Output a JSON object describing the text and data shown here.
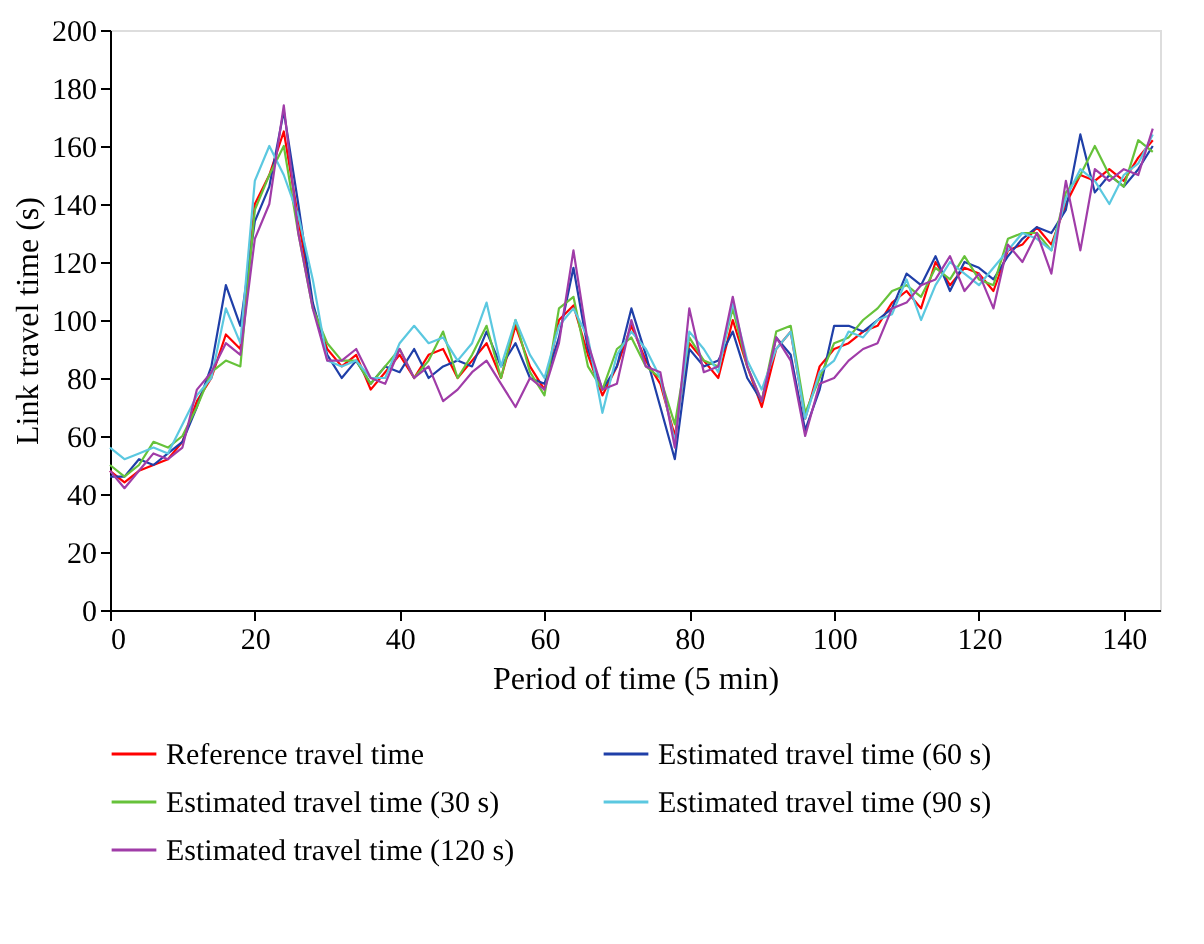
{
  "chart_data": {
    "type": "line",
    "xlabel": "Period of time (5 min)",
    "ylabel": "Link travel time (s)",
    "x": [
      0,
      2,
      4,
      6,
      8,
      10,
      12,
      14,
      16,
      18,
      20,
      22,
      24,
      26,
      28,
      30,
      32,
      34,
      36,
      38,
      40,
      42,
      44,
      46,
      48,
      50,
      52,
      54,
      56,
      58,
      60,
      62,
      64,
      66,
      68,
      70,
      72,
      74,
      76,
      78,
      80,
      82,
      84,
      86,
      88,
      90,
      92,
      94,
      96,
      98,
      100,
      102,
      104,
      106,
      108,
      110,
      112,
      114,
      116,
      118,
      120,
      122,
      124,
      126,
      128,
      130,
      132,
      134,
      136,
      138,
      140,
      142,
      144
    ],
    "xlim": [
      0,
      145
    ],
    "xticks": [
      0,
      20,
      40,
      60,
      80,
      100,
      120,
      140
    ],
    "ylim": [
      0,
      200
    ],
    "yticks": [
      0,
      20,
      40,
      60,
      80,
      100,
      120,
      140,
      160,
      180,
      200
    ],
    "grid": false,
    "legend": "bottom",
    "line_style": "solid",
    "marker": "none",
    "series": [
      {
        "name": "Reference travel time",
        "color": "#ff0000",
        "values": [
          48,
          44,
          48,
          50,
          52,
          58,
          72,
          80,
          95,
          90,
          140,
          150,
          165,
          135,
          105,
          90,
          84,
          88,
          76,
          82,
          88,
          80,
          88,
          90,
          80,
          86,
          92,
          80,
          98,
          84,
          76,
          100,
          105,
          88,
          74,
          84,
          98,
          86,
          78,
          60,
          92,
          86,
          80,
          100,
          84,
          70,
          90,
          96,
          66,
          84,
          90,
          92,
          96,
          98,
          106,
          110,
          104,
          120,
          112,
          118,
          116,
          110,
          124,
          126,
          132,
          126,
          140,
          150,
          148,
          152,
          148,
          156,
          162
        ]
      },
      {
        "name": "Estimated travel time (60 s)",
        "color": "#1f3fa8",
        "values": [
          46,
          46,
          52,
          50,
          54,
          58,
          70,
          84,
          112,
          98,
          134,
          146,
          172,
          140,
          106,
          88,
          80,
          86,
          78,
          84,
          82,
          90,
          80,
          84,
          86,
          84,
          96,
          84,
          92,
          80,
          78,
          94,
          118,
          90,
          76,
          84,
          104,
          88,
          70,
          52,
          90,
          84,
          86,
          96,
          80,
          72,
          94,
          88,
          62,
          76,
          98,
          98,
          96,
          100,
          104,
          116,
          112,
          122,
          110,
          120,
          118,
          114,
          122,
          128,
          132,
          130,
          138,
          164,
          144,
          150,
          146,
          152,
          160
        ]
      },
      {
        "name": "Estimated travel time (30 s)",
        "color": "#66c23a",
        "values": [
          50,
          46,
          50,
          58,
          56,
          60,
          70,
          82,
          86,
          84,
          138,
          150,
          160,
          130,
          104,
          92,
          86,
          86,
          78,
          84,
          90,
          80,
          86,
          96,
          80,
          88,
          98,
          80,
          100,
          82,
          74,
          104,
          108,
          84,
          76,
          90,
          94,
          84,
          80,
          64,
          94,
          86,
          84,
          104,
          84,
          72,
          96,
          98,
          68,
          80,
          92,
          94,
          100,
          104,
          110,
          112,
          108,
          118,
          114,
          122,
          114,
          112,
          128,
          130,
          130,
          124,
          144,
          150,
          160,
          150,
          146,
          162,
          158
        ]
      },
      {
        "name": "Estimated travel time (90 s)",
        "color": "#5bc8e0",
        "values": [
          56,
          52,
          54,
          56,
          54,
          64,
          74,
          80,
          104,
          92,
          148,
          160,
          150,
          136,
          114,
          86,
          84,
          86,
          80,
          80,
          92,
          98,
          92,
          94,
          86,
          92,
          106,
          84,
          100,
          88,
          80,
          98,
          104,
          94,
          68,
          88,
          96,
          90,
          80,
          58,
          96,
          90,
          82,
          106,
          86,
          76,
          90,
          96,
          66,
          82,
          86,
          96,
          94,
          100,
          102,
          114,
          100,
          112,
          120,
          116,
          112,
          118,
          124,
          130,
          128,
          124,
          142,
          152,
          148,
          140,
          150,
          154,
          164
        ]
      },
      {
        "name": "Estimated travel time (120 s)",
        "color": "#a03ca8",
        "values": [
          48,
          42,
          48,
          54,
          52,
          56,
          76,
          82,
          92,
          88,
          128,
          140,
          174,
          130,
          104,
          86,
          86,
          90,
          80,
          78,
          90,
          80,
          84,
          72,
          76,
          82,
          86,
          78,
          70,
          80,
          76,
          92,
          124,
          92,
          76,
          78,
          100,
          84,
          82,
          56,
          104,
          82,
          84,
          108,
          84,
          72,
          94,
          86,
          60,
          78,
          80,
          86,
          90,
          92,
          104,
          106,
          112,
          114,
          122,
          110,
          116,
          104,
          126,
          120,
          130,
          116,
          148,
          124,
          152,
          148,
          152,
          150,
          166
        ]
      }
    ]
  }
}
